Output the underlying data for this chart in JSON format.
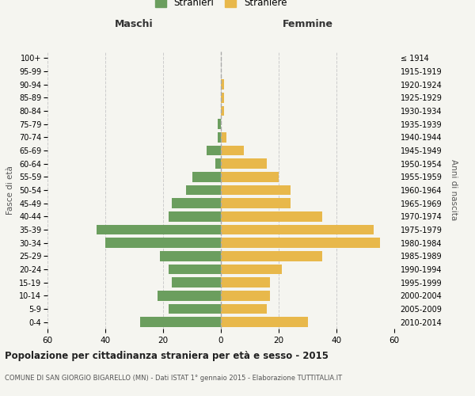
{
  "age_groups": [
    "0-4",
    "5-9",
    "10-14",
    "15-19",
    "20-24",
    "25-29",
    "30-34",
    "35-39",
    "40-44",
    "45-49",
    "50-54",
    "55-59",
    "60-64",
    "65-69",
    "70-74",
    "75-79",
    "80-84",
    "85-89",
    "90-94",
    "95-99",
    "100+"
  ],
  "birth_years": [
    "2010-2014",
    "2005-2009",
    "2000-2004",
    "1995-1999",
    "1990-1994",
    "1985-1989",
    "1980-1984",
    "1975-1979",
    "1970-1974",
    "1965-1969",
    "1960-1964",
    "1955-1959",
    "1950-1954",
    "1945-1949",
    "1940-1944",
    "1935-1939",
    "1930-1934",
    "1925-1929",
    "1920-1924",
    "1915-1919",
    "≤ 1914"
  ],
  "maschi": [
    28,
    18,
    22,
    17,
    18,
    21,
    40,
    43,
    18,
    17,
    12,
    10,
    2,
    5,
    1,
    1,
    0,
    0,
    0,
    0,
    0
  ],
  "femmine": [
    30,
    16,
    17,
    17,
    21,
    35,
    55,
    53,
    35,
    24,
    24,
    20,
    16,
    8,
    2,
    0,
    1,
    1,
    1,
    0,
    0
  ],
  "male_color": "#6b9e5e",
  "female_color": "#e8b84b",
  "bg_color": "#f5f5f0",
  "grid_color": "#cccccc",
  "center_line_color": "#aaaaaa",
  "title": "Popolazione per cittadinanza straniera per età e sesso - 2015",
  "subtitle": "COMUNE DI SAN GIORGIO BIGARELLO (MN) - Dati ISTAT 1° gennaio 2015 - Elaborazione TUTTITALIA.IT",
  "xlabel_left": "Maschi",
  "xlabel_right": "Femmine",
  "ylabel_left": "Fasce di età",
  "ylabel_right": "Anni di nascita",
  "legend_male": "Stranieri",
  "legend_female": "Straniere",
  "xlim": 60
}
